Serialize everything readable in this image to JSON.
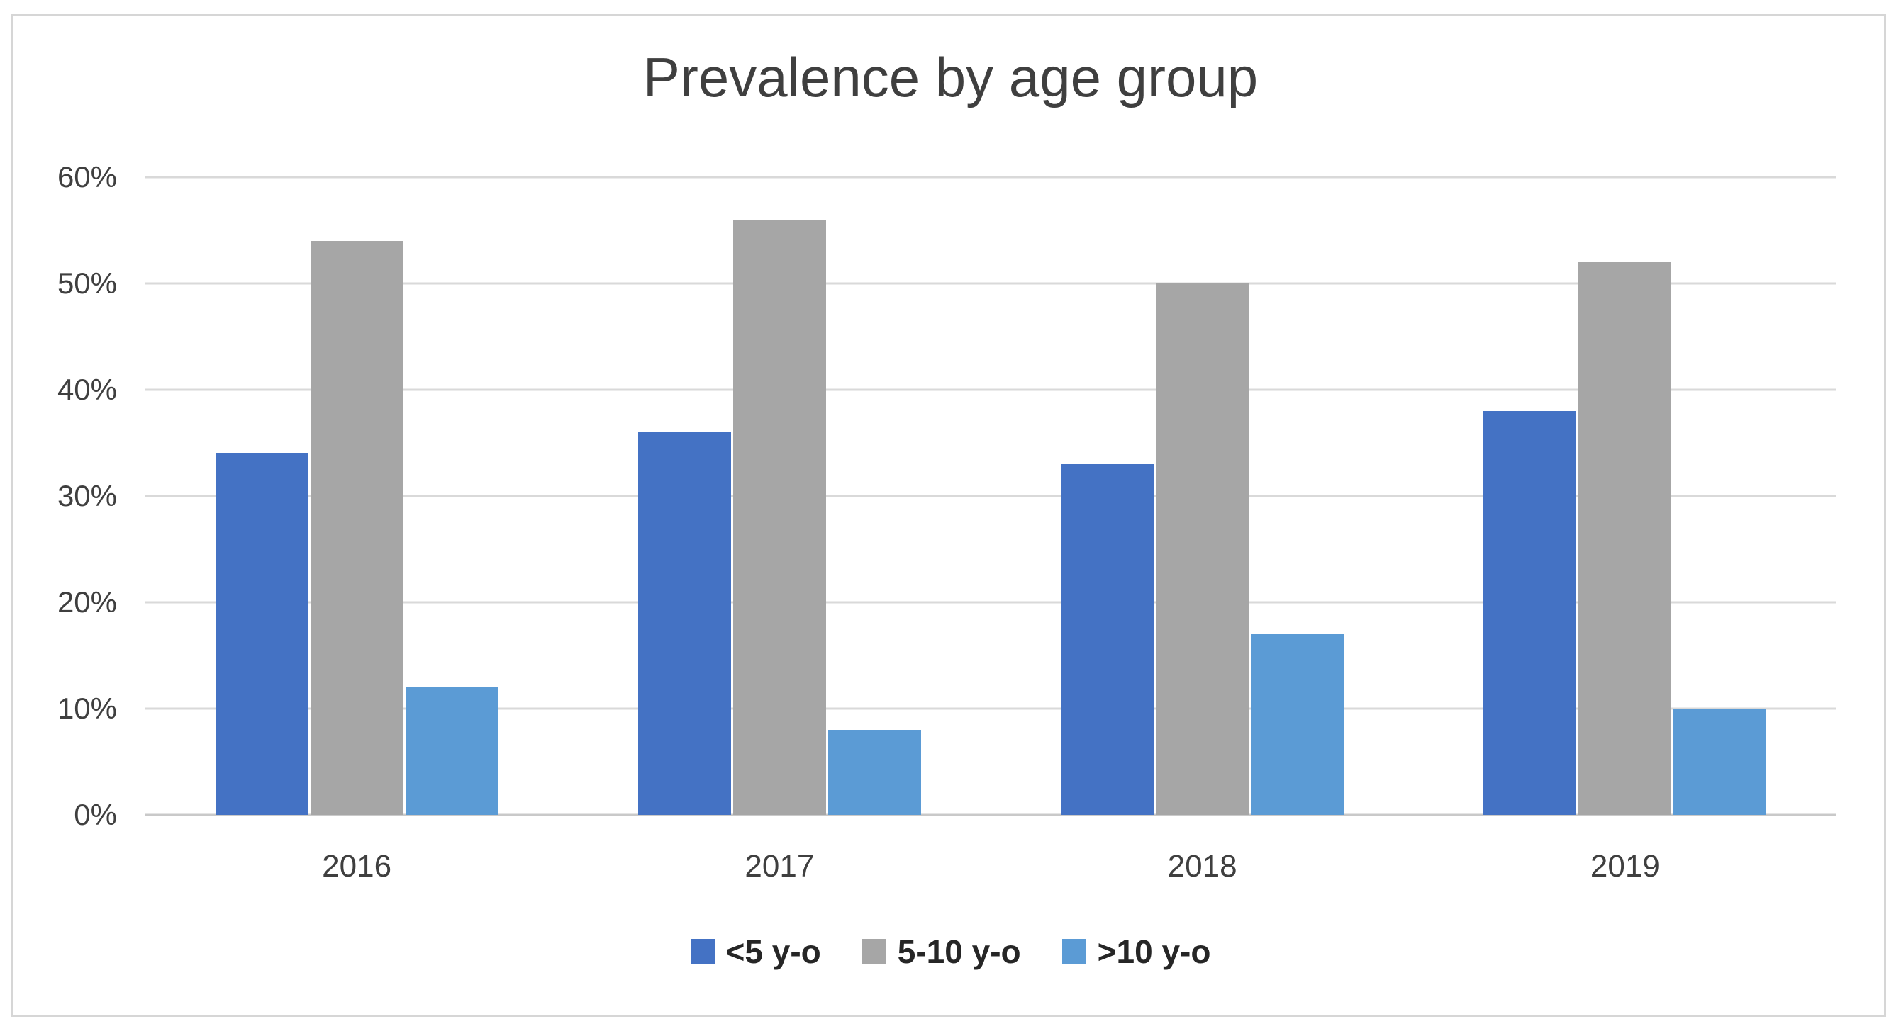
{
  "chart_data": {
    "type": "bar",
    "title": "Prevalence by age group",
    "categories": [
      "2016",
      "2017",
      "2018",
      "2019"
    ],
    "series": [
      {
        "name": "<5 y-o",
        "color": "#4472C4",
        "values": [
          34,
          36,
          33,
          38
        ]
      },
      {
        "name": "5-10 y-o",
        "color": "#A6A6A6",
        "values": [
          54,
          56,
          50,
          52
        ]
      },
      {
        "name": ">10 y-o",
        "color": "#5B9BD5",
        "values": [
          12,
          8,
          17,
          10
        ]
      }
    ],
    "xlabel": "",
    "ylabel": "",
    "ylim": [
      0,
      60
    ],
    "y_tick_step": 10,
    "y_ticks": [
      "0%",
      "10%",
      "20%",
      "30%",
      "40%",
      "50%",
      "60%"
    ],
    "grid": true,
    "grid_color": "#D9D9D9",
    "axis_line_color": "#C9C9C9",
    "frame_border_color": "#D6D6D6",
    "text_color": "#3F3F3F",
    "legend_position": "bottom"
  }
}
